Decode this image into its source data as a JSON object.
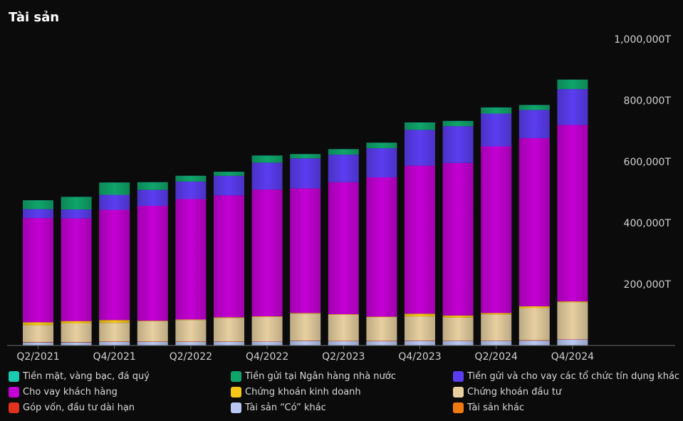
{
  "chart_data": {
    "type": "bar",
    "stacked": true,
    "title": "Tài sản",
    "y_ticks": [
      "200,000T",
      "400,000T",
      "600,000T",
      "800,000T",
      "1,000,000T"
    ],
    "ylim": [
      0,
      1000000
    ],
    "x_tick_labels": [
      "Q2/2021",
      "Q4/2021",
      "Q2/2022",
      "Q4/2022",
      "Q2/2023",
      "Q4/2023",
      "Q2/2024",
      "Q4/2024"
    ],
    "categories": [
      "Q2/2021",
      "Q3/2021",
      "Q4/2021",
      "Q1/2022",
      "Q2/2022",
      "Q3/2022",
      "Q4/2022",
      "Q1/2023",
      "Q2/2023",
      "Q3/2023",
      "Q4/2023",
      "Q1/2024",
      "Q2/2024",
      "Q3/2024",
      "Q4/2024"
    ],
    "series": [
      {
        "name": "Tiền mặt, vàng bạc, đá quý",
        "color": "#19c9b0",
        "values": [
          1000,
          1000,
          1000,
          1000,
          1000,
          1000,
          1000,
          1000,
          1000,
          1000,
          1000,
          1000,
          1000,
          1000,
          1000
        ]
      },
      {
        "name": "Tiền gửi tại Ngân hàng nhà nước",
        "color": "#0fa56a",
        "values": [
          28000,
          40000,
          39000,
          24000,
          18000,
          12000,
          22000,
          13000,
          17000,
          17000,
          23000,
          16000,
          19000,
          15000,
          30000
        ]
      },
      {
        "name": "Tiền gửi và cho vay các tổ chức tín dụng khác",
        "color": "#5b3df0",
        "values": [
          29000,
          29000,
          49000,
          52000,
          57000,
          64000,
          88000,
          98000,
          90000,
          95000,
          117000,
          120000,
          107000,
          92000,
          117000
        ]
      },
      {
        "name": "Cho vay khách hàng",
        "color": "#c400d4",
        "values": [
          340000,
          335000,
          360000,
          375000,
          393000,
          398000,
          414000,
          407000,
          431000,
          455000,
          483000,
          498000,
          544000,
          549000,
          576000
        ]
      },
      {
        "name": "Chứng khoán kinh doanh",
        "color": "#f5c518",
        "values": [
          10000,
          8000,
          9000,
          2000,
          2000,
          2000,
          2000,
          2000,
          2000,
          2000,
          9000,
          7000,
          5000,
          6000,
          3000
        ]
      },
      {
        "name": "Chứng khoán đầu tư",
        "color": "#e7cfa0",
        "values": [
          55000,
          61000,
          61000,
          66000,
          70000,
          77000,
          79000,
          88000,
          85000,
          77000,
          79000,
          75000,
          85000,
          105000,
          120000
        ]
      },
      {
        "name": "Góp vốn, đầu tư dài hạn",
        "color": "#e0321c",
        "values": [
          1000,
          1000,
          1000,
          1000,
          1000,
          1000,
          1000,
          1000,
          1000,
          1000,
          1000,
          1000,
          1000,
          1000,
          1000
        ]
      },
      {
        "name": "Tài sản “Có” khác",
        "color": "#b8c8f2",
        "values": [
          10000,
          10000,
          12000,
          12000,
          12000,
          12000,
          13000,
          15000,
          14000,
          14000,
          15000,
          15000,
          15000,
          16000,
          20000
        ]
      },
      {
        "name": "Tài sản khác",
        "color": "#f07a10",
        "values": [
          0,
          0,
          0,
          0,
          0,
          0,
          0,
          0,
          0,
          0,
          0,
          0,
          0,
          0,
          0
        ]
      }
    ],
    "stack_order": [
      7,
      6,
      5,
      4,
      3,
      2,
      1,
      0
    ],
    "grid": false,
    "legend_position": "bottom"
  }
}
